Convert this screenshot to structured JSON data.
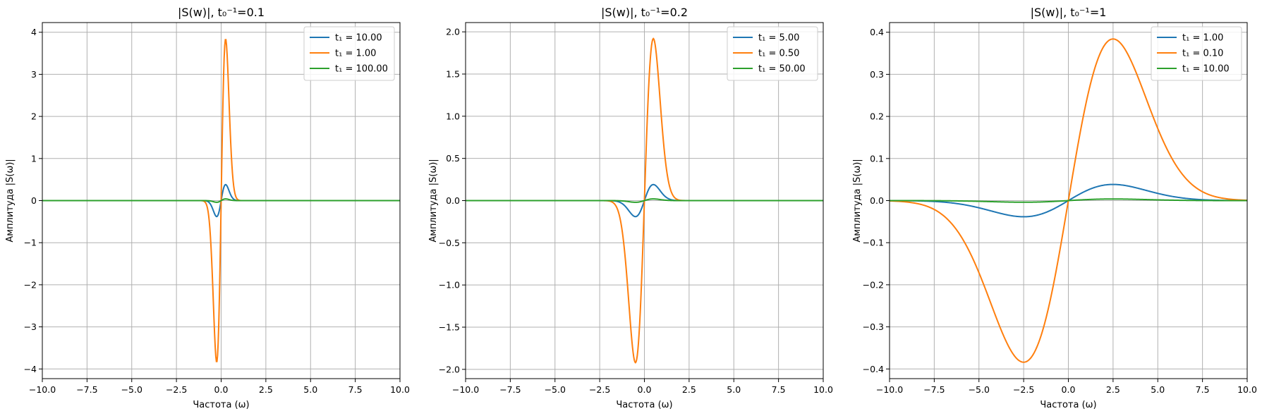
{
  "colors": {
    "series1": "#1f77b4",
    "series2": "#ff7f0e",
    "series3": "#2ca02c",
    "grid": "#b0b0b0",
    "axes": "#000000"
  },
  "chart_data": [
    {
      "type": "line",
      "title": "|S(w)|, t₀⁻¹=0.1",
      "xlabel": "Частота (ω)",
      "ylabel": "Амплитуда |S(ω)|",
      "xlim": [
        -10,
        10
      ],
      "ylim": [
        -4.23,
        4.23
      ],
      "xticks": [
        -10,
        -7.5,
        -5,
        -2.5,
        0,
        2.5,
        5,
        7.5,
        10
      ],
      "xtick_labels": [
        "−10.0",
        "−7.5",
        "−5.0",
        "−2.5",
        "0.0",
        "2.5",
        "5.0",
        "7.5",
        "10.0"
      ],
      "yticks": [
        -4,
        -3,
        -2,
        -1,
        0,
        1,
        2,
        3,
        4
      ],
      "ytick_labels": [
        "−4",
        "−3",
        "−2",
        "−1",
        "0",
        "1",
        "2",
        "3",
        "4"
      ],
      "grid": true,
      "legend": "top-right",
      "curve": {
        "form": "x*exp(-x^2/2)",
        "scale": 0.25
      },
      "series": [
        {
          "name": "t₁ = 10.00",
          "color": "#1f77b4",
          "peak": 0.38
        },
        {
          "name": "t₁ = 1.00",
          "color": "#ff7f0e",
          "peak": 3.84
        },
        {
          "name": "t₁ = 100.00",
          "color": "#2ca02c",
          "peak": 0.04
        }
      ]
    },
    {
      "type": "line",
      "title": "|S(w)|, t₀⁻¹=0.2",
      "xlabel": "Частота (ω)",
      "ylabel": "Амплитуда |S(ω)|",
      "xlim": [
        -10,
        10
      ],
      "ylim": [
        -2.11,
        2.11
      ],
      "xticks": [
        -10,
        -7.5,
        -5,
        -2.5,
        0,
        2.5,
        5,
        7.5,
        10
      ],
      "xtick_labels": [
        "−10.0",
        "−7.5",
        "−5.0",
        "−2.5",
        "0.0",
        "2.5",
        "5.0",
        "7.5",
        "10.0"
      ],
      "yticks": [
        -2,
        -1.5,
        -1,
        -0.5,
        0,
        0.5,
        1,
        1.5,
        2
      ],
      "ytick_labels": [
        "−2.0",
        "−1.5",
        "−1.0",
        "−0.5",
        "0.0",
        "0.5",
        "1.0",
        "1.5",
        "2.0"
      ],
      "grid": true,
      "legend": "top-right",
      "curve": {
        "form": "x*exp(-x^2/2)",
        "scale": 0.5
      },
      "series": [
        {
          "name": "t₁ = 5.00",
          "color": "#1f77b4",
          "peak": 0.19
        },
        {
          "name": "t₁ = 0.50",
          "color": "#ff7f0e",
          "peak": 1.92
        },
        {
          "name": "t₁ = 50.00",
          "color": "#2ca02c",
          "peak": 0.02
        }
      ]
    },
    {
      "type": "line",
      "title": "|S(w)|, t₀⁻¹=1",
      "xlabel": "Частота (ω)",
      "ylabel": "Амплитуда |S(ω)|",
      "xlim": [
        -10,
        10
      ],
      "ylim": [
        -0.423,
        0.423
      ],
      "xticks": [
        -10,
        -7.5,
        -5,
        -2.5,
        0,
        2.5,
        5,
        7.5,
        10
      ],
      "xtick_labels": [
        "−10.0",
        "−7.5",
        "−5.0",
        "−2.5",
        "0.0",
        "2.5",
        "5.0",
        "7.5",
        "10.0"
      ],
      "yticks": [
        -0.4,
        -0.3,
        -0.2,
        -0.1,
        0,
        0.1,
        0.2,
        0.3,
        0.4
      ],
      "ytick_labels": [
        "−0.4",
        "−0.3",
        "−0.2",
        "−0.1",
        "0.0",
        "0.1",
        "0.2",
        "0.3",
        "0.4"
      ],
      "grid": true,
      "legend": "top-right",
      "curve": {
        "form": "x*exp(-x^2/2)",
        "scale": 2.5
      },
      "series": [
        {
          "name": "t₁ = 1.00",
          "color": "#1f77b4",
          "peak": 0.0384
        },
        {
          "name": "t₁ = 0.10",
          "color": "#ff7f0e",
          "peak": 0.384
        },
        {
          "name": "t₁ = 10.00",
          "color": "#2ca02c",
          "peak": 0.00384
        }
      ]
    }
  ]
}
